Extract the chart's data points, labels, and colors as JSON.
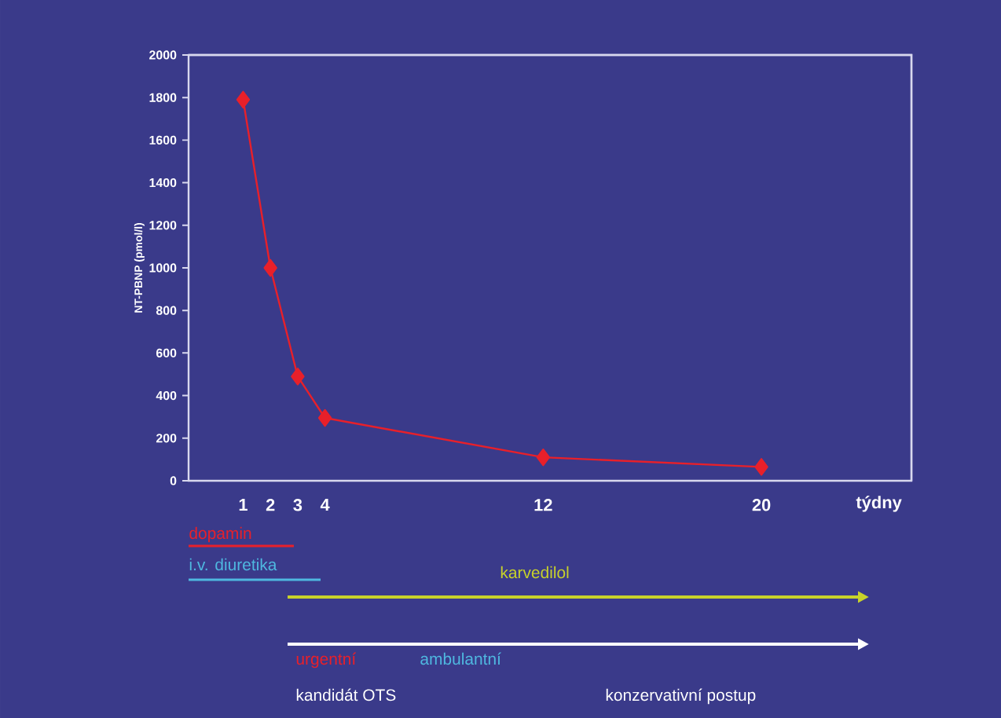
{
  "chart_data": {
    "type": "line",
    "ylabel": "NT-PBNP (pmol/l)",
    "xlabel": "týdny",
    "x": [
      1,
      2,
      3,
      4,
      12,
      20
    ],
    "series": [
      {
        "color": "#e8202a",
        "values": [
          1790,
          1000,
          490,
          295,
          110,
          65
        ]
      }
    ],
    "xlim": [
      -1,
      25.5
    ],
    "xticks": [
      1,
      2,
      3,
      4,
      12,
      20
    ],
    "ylim": [
      0,
      2000
    ],
    "yticks": [
      0,
      200,
      400,
      600,
      800,
      1000,
      1200,
      1400,
      1600,
      1800,
      2000
    ],
    "marker": "diamond",
    "line_style": "solid",
    "grid": false,
    "annotations": [
      "dopamin",
      "i.v. diuretika",
      "karvedilol",
      "urgentní",
      "ambulantní",
      "kandidát OTS",
      "konzervativní postup"
    ]
  }
}
